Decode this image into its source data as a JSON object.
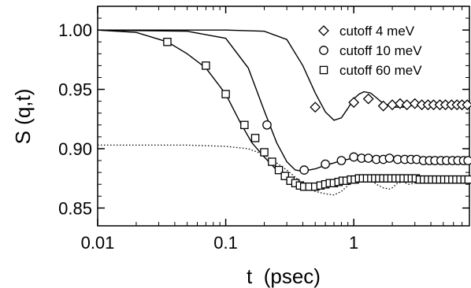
{
  "chart_data": {
    "type": "line",
    "xlabel": "t  (psec)",
    "ylabel": "S (q,t)",
    "xscale": "log",
    "xlim": [
      0.01,
      8
    ],
    "ylim": [
      0.835,
      1.02
    ],
    "grid": false,
    "legend": "top-right",
    "x_ticks": [
      0.01,
      0.1,
      1
    ],
    "x_tick_labels": [
      "0.01",
      "0.1",
      "1"
    ],
    "y_ticks": [
      0.85,
      0.9,
      0.95,
      1.0
    ],
    "y_tick_labels": [
      "0.85",
      "0.90",
      "0.95",
      "1.00"
    ],
    "series": [
      {
        "name": "cutoff  4 meV",
        "marker": "diamond",
        "curve": [
          [
            0.01,
            1.0
          ],
          [
            0.1,
            1.0
          ],
          [
            0.2,
            0.999
          ],
          [
            0.3,
            0.992
          ],
          [
            0.4,
            0.97
          ],
          [
            0.5,
            0.947
          ],
          [
            0.6,
            0.931
          ],
          [
            0.7,
            0.924
          ],
          [
            0.8,
            0.926
          ],
          [
            0.9,
            0.934
          ],
          [
            1.0,
            0.942
          ],
          [
            1.1,
            0.946
          ],
          [
            1.2,
            0.948
          ],
          [
            1.35,
            0.947
          ],
          [
            1.5,
            0.943
          ],
          [
            1.7,
            0.938
          ],
          [
            2.0,
            0.935
          ],
          [
            2.5,
            0.935
          ],
          [
            3,
            0.937
          ],
          [
            4,
            0.937
          ],
          [
            5,
            0.936
          ],
          [
            6,
            0.937
          ],
          [
            8,
            0.937
          ]
        ],
        "points": [
          [
            0.5,
            0.935
          ],
          [
            1.0,
            0.939
          ],
          [
            1.3,
            0.942
          ],
          [
            1.7,
            0.936
          ],
          [
            2.0,
            0.937
          ],
          [
            2.3,
            0.938
          ],
          [
            2.6,
            0.937
          ],
          [
            3.0,
            0.938
          ],
          [
            3.4,
            0.937
          ],
          [
            3.8,
            0.937
          ],
          [
            4.2,
            0.937
          ],
          [
            4.7,
            0.937
          ],
          [
            5.2,
            0.937
          ],
          [
            5.8,
            0.937
          ],
          [
            6.4,
            0.937
          ],
          [
            7.0,
            0.937
          ],
          [
            7.7,
            0.937
          ]
        ]
      },
      {
        "name": "cutoff 10 meV",
        "marker": "circle",
        "curve": [
          [
            0.01,
            1.0
          ],
          [
            0.05,
            0.999
          ],
          [
            0.1,
            0.993
          ],
          [
            0.15,
            0.968
          ],
          [
            0.2,
            0.932
          ],
          [
            0.25,
            0.905
          ],
          [
            0.3,
            0.889
          ],
          [
            0.35,
            0.882
          ],
          [
            0.4,
            0.881
          ],
          [
            0.5,
            0.883
          ],
          [
            0.6,
            0.886
          ],
          [
            0.7,
            0.888
          ],
          [
            0.8,
            0.89
          ],
          [
            1.0,
            0.892
          ],
          [
            1.5,
            0.891
          ],
          [
            2,
            0.891
          ],
          [
            3,
            0.891
          ],
          [
            5,
            0.89
          ],
          [
            8,
            0.891
          ]
        ],
        "points": [
          [
            0.21,
            0.92
          ],
          [
            0.41,
            0.882
          ],
          [
            0.6,
            0.887
          ],
          [
            0.8,
            0.89
          ],
          [
            1.0,
            0.893
          ],
          [
            1.15,
            0.892
          ],
          [
            1.3,
            0.892
          ],
          [
            1.5,
            0.891
          ],
          [
            1.7,
            0.891
          ],
          [
            1.9,
            0.892
          ],
          [
            2.2,
            0.891
          ],
          [
            2.5,
            0.891
          ],
          [
            2.8,
            0.891
          ],
          [
            3.1,
            0.891
          ],
          [
            3.5,
            0.89
          ],
          [
            3.9,
            0.89
          ],
          [
            4.3,
            0.89
          ],
          [
            4.8,
            0.89
          ],
          [
            5.3,
            0.89
          ],
          [
            5.9,
            0.89
          ],
          [
            6.5,
            0.89
          ],
          [
            7.2,
            0.89
          ],
          [
            7.8,
            0.89
          ]
        ]
      },
      {
        "name": "cutoff 60 meV",
        "marker": "square",
        "curve": [
          [
            0.01,
            1.0
          ],
          [
            0.02,
            0.998
          ],
          [
            0.035,
            0.99
          ],
          [
            0.05,
            0.98
          ],
          [
            0.07,
            0.968
          ],
          [
            0.1,
            0.946
          ],
          [
            0.13,
            0.922
          ],
          [
            0.16,
            0.905
          ],
          [
            0.2,
            0.893
          ],
          [
            0.25,
            0.882
          ],
          [
            0.3,
            0.875
          ],
          [
            0.35,
            0.871
          ],
          [
            0.4,
            0.868
          ],
          [
            0.5,
            0.868
          ],
          [
            0.6,
            0.869
          ],
          [
            0.8,
            0.872
          ],
          [
            1.0,
            0.874
          ],
          [
            1.5,
            0.875
          ],
          [
            2,
            0.875
          ],
          [
            3,
            0.875
          ],
          [
            5,
            0.874
          ],
          [
            8,
            0.874
          ]
        ],
        "points": [
          [
            0.035,
            0.99
          ],
          [
            0.07,
            0.97
          ],
          [
            0.1,
            0.946
          ],
          [
            0.14,
            0.92
          ],
          [
            0.17,
            0.909
          ],
          [
            0.2,
            0.897
          ],
          [
            0.23,
            0.889
          ],
          [
            0.26,
            0.882
          ],
          [
            0.29,
            0.877
          ],
          [
            0.32,
            0.873
          ],
          [
            0.35,
            0.871
          ],
          [
            0.38,
            0.869
          ],
          [
            0.41,
            0.868
          ],
          [
            0.45,
            0.868
          ],
          [
            0.5,
            0.868
          ],
          [
            0.55,
            0.869
          ],
          [
            0.6,
            0.87
          ],
          [
            0.65,
            0.871
          ],
          [
            0.7,
            0.871
          ],
          [
            0.76,
            0.872
          ],
          [
            0.82,
            0.873
          ],
          [
            0.88,
            0.873
          ],
          [
            0.95,
            0.874
          ],
          [
            1.02,
            0.874
          ],
          [
            1.1,
            0.875
          ],
          [
            1.18,
            0.875
          ],
          [
            1.27,
            0.875
          ],
          [
            1.37,
            0.875
          ],
          [
            1.47,
            0.875
          ],
          [
            1.58,
            0.875
          ],
          [
            1.7,
            0.875
          ],
          [
            1.83,
            0.875
          ],
          [
            1.97,
            0.875
          ],
          [
            2.12,
            0.875
          ],
          [
            2.28,
            0.875
          ],
          [
            2.45,
            0.875
          ],
          [
            2.64,
            0.875
          ],
          [
            2.84,
            0.875
          ],
          [
            3.05,
            0.875
          ],
          [
            3.28,
            0.874
          ],
          [
            3.53,
            0.874
          ],
          [
            3.8,
            0.874
          ],
          [
            4.09,
            0.874
          ],
          [
            4.4,
            0.874
          ],
          [
            4.73,
            0.874
          ],
          [
            5.09,
            0.874
          ],
          [
            5.47,
            0.874
          ],
          [
            5.89,
            0.874
          ],
          [
            6.33,
            0.874
          ],
          [
            6.81,
            0.874
          ],
          [
            7.33,
            0.874
          ],
          [
            7.88,
            0.874
          ]
        ]
      },
      {
        "marker": "none",
        "linestyle": "dotted",
        "curve": [
          [
            0.01,
            0.903
          ],
          [
            0.05,
            0.903
          ],
          [
            0.1,
            0.902
          ],
          [
            0.15,
            0.9
          ],
          [
            0.2,
            0.895
          ],
          [
            0.25,
            0.888
          ],
          [
            0.3,
            0.882
          ],
          [
            0.35,
            0.876
          ],
          [
            0.4,
            0.87
          ],
          [
            0.5,
            0.864
          ],
          [
            0.6,
            0.862
          ],
          [
            0.7,
            0.861
          ],
          [
            0.8,
            0.864
          ],
          [
            0.9,
            0.869
          ],
          [
            1.0,
            0.874
          ],
          [
            1.1,
            0.877
          ],
          [
            1.2,
            0.877
          ],
          [
            1.35,
            0.874
          ],
          [
            1.5,
            0.87
          ],
          [
            1.7,
            0.867
          ],
          [
            1.9,
            0.866
          ],
          [
            2.0,
            0.867
          ],
          [
            2.2,
            0.871
          ],
          [
            2.4,
            0.872
          ],
          [
            2.7,
            0.87
          ],
          [
            3.0,
            0.871
          ],
          [
            4,
            0.872
          ],
          [
            6,
            0.872
          ],
          [
            8,
            0.872
          ]
        ]
      }
    ]
  }
}
